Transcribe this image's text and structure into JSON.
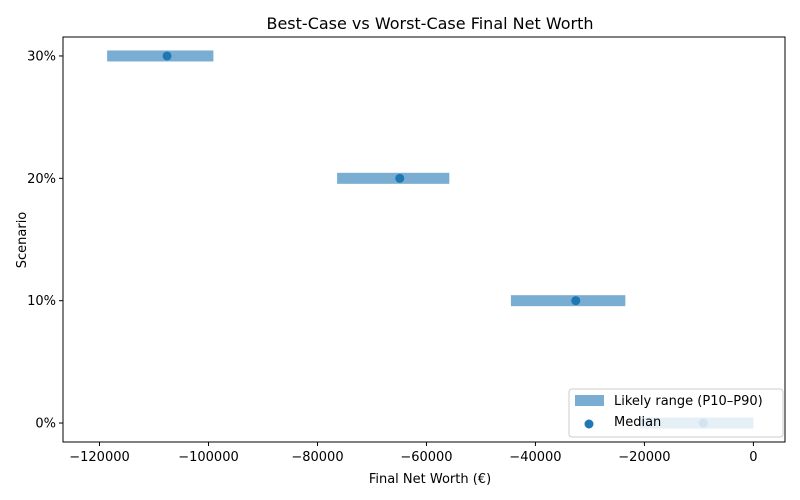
{
  "chart_data": {
    "type": "bar",
    "orientation": "horizontal-range",
    "title": "Best-Case vs Worst-Case Final Net Worth",
    "xlabel": "Final Net Worth (€)",
    "ylabel": "Scenario",
    "categories": [
      "0%",
      "10%",
      "20%",
      "30%"
    ],
    "category_values": [
      0,
      10,
      20,
      30
    ],
    "series": [
      {
        "name": "Likely range (P10–P90)",
        "kind": "range",
        "low": [
          -20800,
          -44500,
          -76400,
          -118600
        ],
        "high": [
          0,
          -23500,
          -55800,
          -99100
        ]
      },
      {
        "name": "Median",
        "kind": "scatter",
        "values": [
          -9200,
          -32600,
          -64900,
          -107600
        ]
      }
    ],
    "xlim": [
      -126700,
      5800
    ],
    "ylim": [
      -1.55,
      31.55
    ],
    "xticks": [
      -120000,
      -100000,
      -80000,
      -60000,
      -40000,
      -20000,
      0
    ],
    "xtick_labels": [
      "−120000",
      "−100000",
      "−80000",
      "−60000",
      "−40000",
      "−20000",
      "0"
    ],
    "grid": false,
    "legend_position": "lower-right",
    "colors": {
      "range": "#1f77b4",
      "median": "#1f77b4"
    }
  }
}
